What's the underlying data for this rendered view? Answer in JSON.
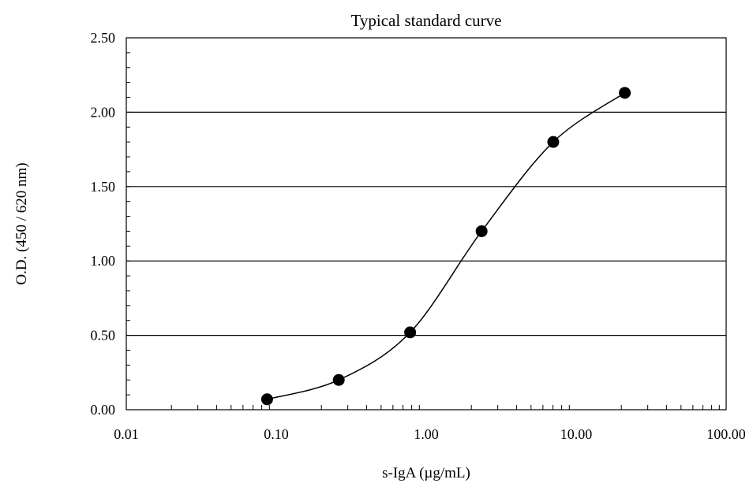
{
  "chart_data": {
    "type": "scatter",
    "title": "Typical standard curve",
    "xlabel": "s-IgA (µg/mL)",
    "ylabel": "O.D. (450 / 620 nm)",
    "x_scale": "log",
    "xlim": [
      0.01,
      100
    ],
    "ylim": [
      0,
      2.5
    ],
    "x_ticks": [
      0.01,
      0.1,
      1,
      10,
      100
    ],
    "x_tick_labels": [
      "0.01",
      "0.10",
      "1.00",
      "10.00",
      "100.00"
    ],
    "y_ticks": [
      0,
      0.5,
      1,
      1.5,
      2,
      2.5
    ],
    "y_tick_labels": [
      "0.00",
      "0.50",
      "1.00",
      "1.50",
      "2.00",
      "2.50"
    ],
    "grid": "horizontal major lines",
    "legend": "none",
    "fit_line": "smooth curve through points",
    "series": [
      {
        "x": [
          0.0869,
          0.261,
          0.781,
          2.34,
          7.03,
          21.1
        ],
        "y": [
          0.07,
          0.2,
          0.52,
          1.2,
          1.8,
          2.13
        ]
      }
    ]
  }
}
